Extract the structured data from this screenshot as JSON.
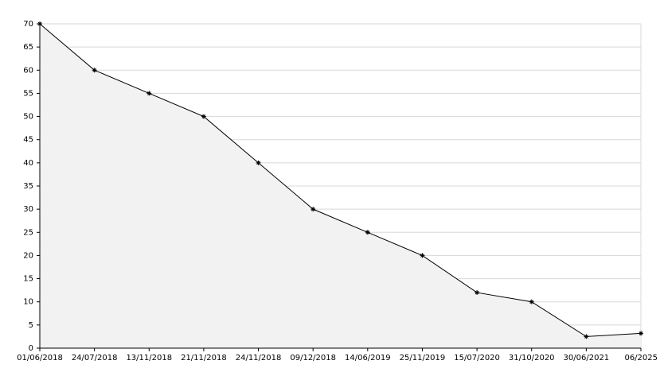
{
  "chart_data": {
    "type": "area",
    "categories": [
      "01/06/2018",
      "24/07/2018",
      "13/11/2018",
      "21/11/2018",
      "24/11/2018",
      "09/12/2018",
      "14/06/2019",
      "25/11/2019",
      "15/07/2020",
      "31/10/2020",
      "30/06/2021",
      "06/2025"
    ],
    "values": [
      70,
      60,
      55,
      50,
      40,
      30,
      25,
      20,
      12,
      10,
      2.5,
      3.2
    ],
    "color": "#000000",
    "fill": "#f2f2f2",
    "ylim": [
      0,
      70
    ],
    "yticks": [
      0,
      5,
      10,
      15,
      20,
      25,
      30,
      35,
      40,
      45,
      50,
      55,
      60,
      65,
      70
    ],
    "grid": true
  }
}
